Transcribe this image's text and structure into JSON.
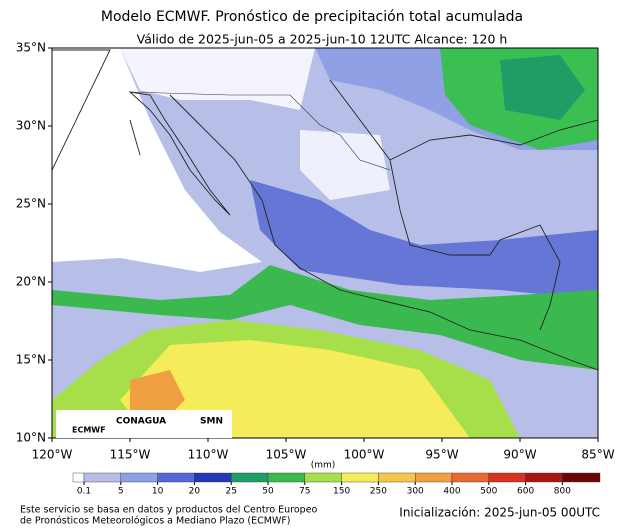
{
  "title": "Modelo ECMWF. Pronóstico de precipitación total acumulada",
  "subtitle": "Válido de 2025-jun-05 a 2025-jun-10 12UTC   Alcance: 120 h",
  "lat_ticks": [
    {
      "value": 35,
      "label": "35°N"
    },
    {
      "value": 30,
      "label": "30°N"
    },
    {
      "value": 25,
      "label": "25°N"
    },
    {
      "value": 20,
      "label": "20°N"
    },
    {
      "value": 15,
      "label": "15°N"
    },
    {
      "value": 10,
      "label": "10°N"
    }
  ],
  "lon_ticks": [
    {
      "value": -120,
      "label": "120°W"
    },
    {
      "value": -115,
      "label": "115°W"
    },
    {
      "value": -110,
      "label": "110°W"
    },
    {
      "value": -105,
      "label": "105°W"
    },
    {
      "value": -100,
      "label": "100°W"
    },
    {
      "value": -95,
      "label": "95°W"
    },
    {
      "value": -90,
      "label": "90°W"
    },
    {
      "value": -85,
      "label": "85°W"
    }
  ],
  "colorbar": {
    "unit": "(mm)",
    "levels": [
      0.1,
      5,
      10,
      20,
      25,
      50,
      75,
      150,
      250,
      300,
      400,
      500,
      600,
      800
    ],
    "colors": [
      "#ffffff",
      "#b7bfe9",
      "#8fa0e4",
      "#5468d8",
      "#2238b8",
      "#1e9e66",
      "#3cb94e",
      "#a7df4a",
      "#f4ec5a",
      "#f4c64a",
      "#f0a040",
      "#e86a30",
      "#d83222",
      "#a81616",
      "#6a0606"
    ]
  },
  "logos": [
    "ECMWF",
    "CONAGUA",
    "SMN"
  ],
  "footer": [
    "Este servicio se basa en datos y productos del Centro Europeo",
    "de Pronósticos Meteorológicos a Mediano Plazo (ECMWF)"
  ],
  "init": "Inicialización: 2025-jun-05 00UTC"
}
